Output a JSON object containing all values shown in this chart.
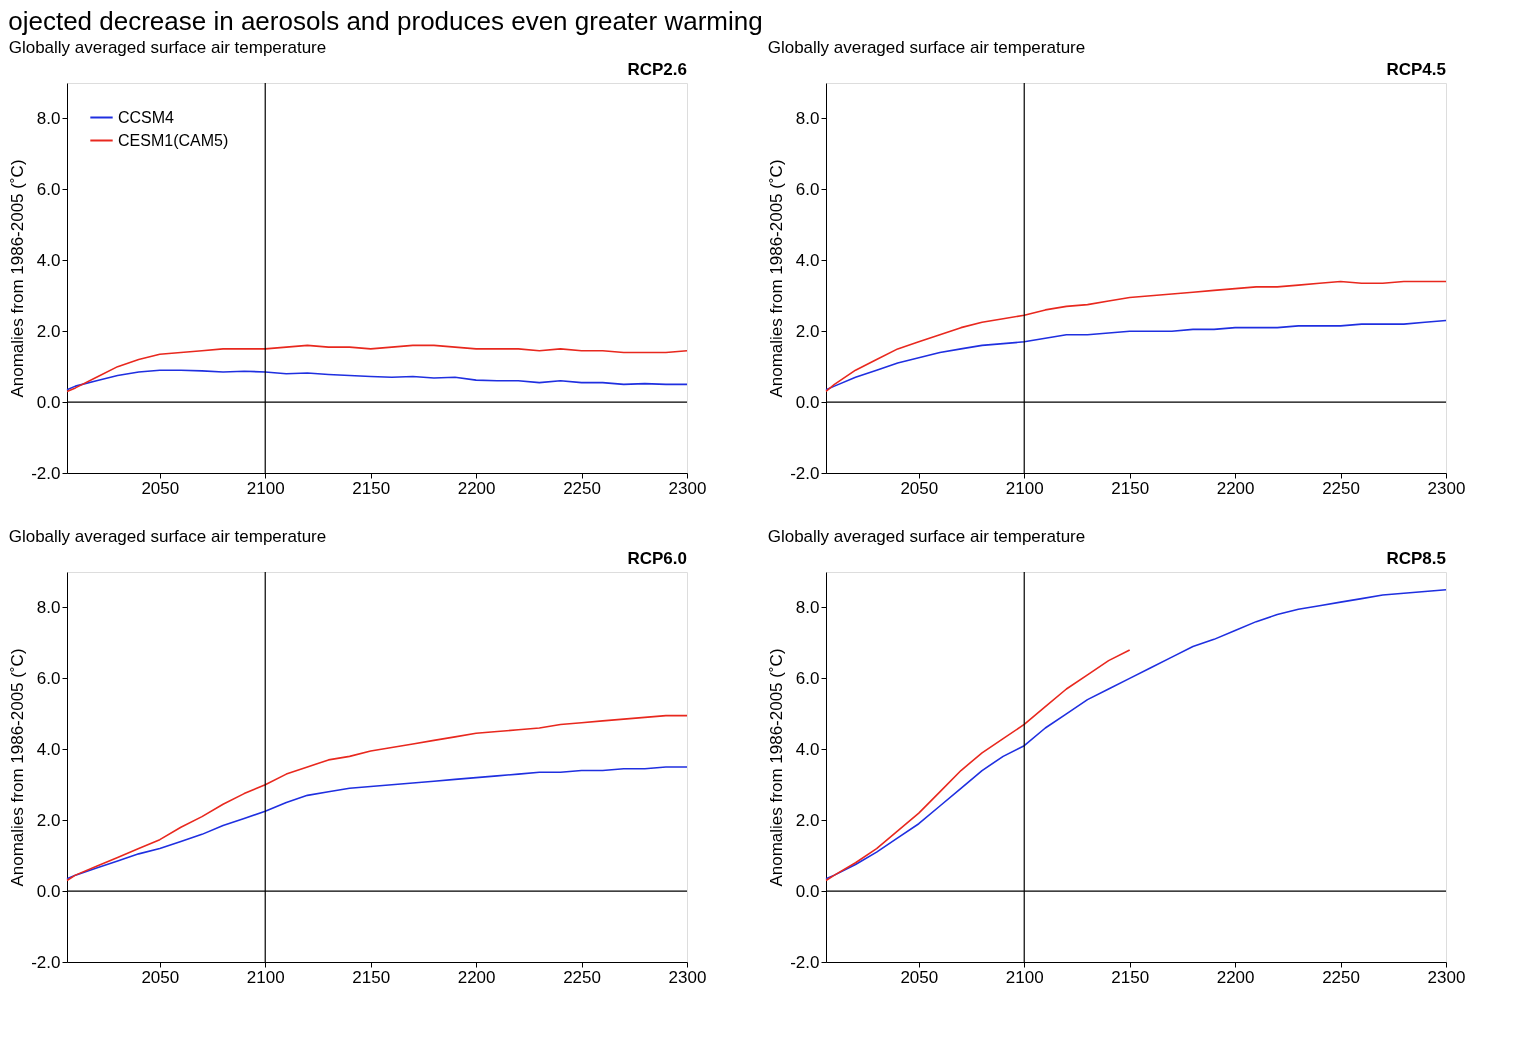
{
  "chart_data": [
    {
      "type": "line",
      "title": "Globally averaged surface air temperature",
      "subtitle": "RCP2.6",
      "ylabel": "Anomalies from 1986-2005 (˚C)",
      "annotations": [
        "ojected decrease in aerosols and produces even greater warming"
      ],
      "x": [
        2006,
        2010,
        2020,
        2030,
        2040,
        2050,
        2060,
        2070,
        2080,
        2090,
        2100,
        2110,
        2120,
        2130,
        2140,
        2150,
        2160,
        2170,
        2180,
        2190,
        2200,
        2210,
        2220,
        2230,
        2240,
        2250,
        2260,
        2270,
        2280,
        2290,
        2300
      ],
      "xlim": [
        2006,
        2300
      ],
      "xticks": [
        2050,
        2100,
        2150,
        2200,
        2250,
        2300
      ],
      "ylim": [
        -2,
        9
      ],
      "yticks": [
        {
          "value": -2,
          "label": "-2.0"
        },
        {
          "value": 0,
          "label": "0.0"
        },
        {
          "value": 2,
          "label": "2.0"
        },
        {
          "value": 4,
          "label": "4.0"
        },
        {
          "value": 6,
          "label": "6.0"
        },
        {
          "value": 8,
          "label": "8.0"
        }
      ],
      "grid": false,
      "legend": "top left",
      "ref_lines": [
        {
          "axis": "y",
          "value": 0,
          "color": "#000000"
        },
        {
          "axis": "x",
          "value": 2100,
          "color": "#000000"
        }
      ],
      "series": [
        {
          "name": "CCSM4",
          "color": "#1f2fe0",
          "values": [
            0.35,
            0.45,
            0.6,
            0.75,
            0.85,
            0.9,
            0.9,
            0.88,
            0.85,
            0.87,
            0.85,
            0.8,
            0.82,
            0.78,
            0.75,
            0.72,
            0.7,
            0.72,
            0.68,
            0.7,
            0.62,
            0.6,
            0.6,
            0.55,
            0.6,
            0.55,
            0.55,
            0.5,
            0.52,
            0.5,
            0.5
          ]
        },
        {
          "name": "CESM1(CAM5)",
          "color": "#e8281e",
          "values": [
            0.3,
            0.4,
            0.7,
            1.0,
            1.2,
            1.35,
            1.4,
            1.45,
            1.5,
            1.5,
            1.5,
            1.55,
            1.6,
            1.55,
            1.55,
            1.5,
            1.55,
            1.6,
            1.6,
            1.55,
            1.5,
            1.5,
            1.5,
            1.45,
            1.5,
            1.45,
            1.45,
            1.4,
            1.4,
            1.4,
            1.45
          ]
        }
      ]
    },
    {
      "type": "line",
      "title": "Globally averaged surface air temperature",
      "subtitle": "RCP4.5",
      "ylabel": "Anomalies from 1986-2005 (˚C)",
      "x": [
        2006,
        2010,
        2020,
        2030,
        2040,
        2050,
        2060,
        2070,
        2080,
        2090,
        2100,
        2110,
        2120,
        2130,
        2140,
        2150,
        2160,
        2170,
        2180,
        2190,
        2200,
        2210,
        2220,
        2230,
        2240,
        2250,
        2260,
        2270,
        2280,
        2290,
        2300
      ],
      "xlim": [
        2006,
        2300
      ],
      "xticks": [
        2050,
        2100,
        2150,
        2200,
        2250,
        2300
      ],
      "ylim": [
        -2,
        9
      ],
      "yticks": [
        {
          "value": -2,
          "label": "-2.0"
        },
        {
          "value": 0,
          "label": "0.0"
        },
        {
          "value": 2,
          "label": "2.0"
        },
        {
          "value": 4,
          "label": "4.0"
        },
        {
          "value": 6,
          "label": "6.0"
        },
        {
          "value": 8,
          "label": "8.0"
        }
      ],
      "grid": false,
      "legend": "top left",
      "ref_lines": [
        {
          "axis": "y",
          "value": 0,
          "color": "#000000"
        },
        {
          "axis": "x",
          "value": 2100,
          "color": "#000000"
        }
      ],
      "series": [
        {
          "name": "CCSM4",
          "color": "#1f2fe0",
          "values": [
            0.35,
            0.45,
            0.7,
            0.9,
            1.1,
            1.25,
            1.4,
            1.5,
            1.6,
            1.65,
            1.7,
            1.8,
            1.9,
            1.9,
            1.95,
            2.0,
            2.0,
            2.0,
            2.05,
            2.05,
            2.1,
            2.1,
            2.1,
            2.15,
            2.15,
            2.15,
            2.2,
            2.2,
            2.2,
            2.25,
            2.3
          ]
        },
        {
          "name": "CESM1(CAM5)",
          "color": "#e8281e",
          "values": [
            0.3,
            0.5,
            0.9,
            1.2,
            1.5,
            1.7,
            1.9,
            2.1,
            2.25,
            2.35,
            2.45,
            2.6,
            2.7,
            2.75,
            2.85,
            2.95,
            3.0,
            3.05,
            3.1,
            3.15,
            3.2,
            3.25,
            3.25,
            3.3,
            3.35,
            3.4,
            3.35,
            3.35,
            3.4,
            3.4,
            3.4
          ]
        }
      ]
    },
    {
      "type": "line",
      "title": "Globally averaged surface air temperature",
      "subtitle": "RCP6.0",
      "ylabel": "Anomalies from 1986-2005 (˚C)",
      "x": [
        2006,
        2010,
        2020,
        2030,
        2040,
        2050,
        2060,
        2070,
        2080,
        2090,
        2100,
        2110,
        2120,
        2130,
        2140,
        2150,
        2160,
        2170,
        2180,
        2190,
        2200,
        2210,
        2220,
        2230,
        2240,
        2250,
        2260,
        2270,
        2280,
        2290,
        2300
      ],
      "xlim": [
        2006,
        2300
      ],
      "xticks": [
        2050,
        2100,
        2150,
        2200,
        2250,
        2300
      ],
      "ylim": [
        -2,
        9
      ],
      "yticks": [
        {
          "value": -2,
          "label": "-2.0"
        },
        {
          "value": 0,
          "label": "0.0"
        },
        {
          "value": 2,
          "label": "2.0"
        },
        {
          "value": 4,
          "label": "4.0"
        },
        {
          "value": 6,
          "label": "6.0"
        },
        {
          "value": 8,
          "label": "8.0"
        }
      ],
      "grid": false,
      "legend": "top left",
      "ref_lines": [
        {
          "axis": "y",
          "value": 0,
          "color": "#000000"
        },
        {
          "axis": "x",
          "value": 2100,
          "color": "#000000"
        }
      ],
      "series": [
        {
          "name": "CCSM4",
          "color": "#1f2fe0",
          "values": [
            0.35,
            0.45,
            0.65,
            0.85,
            1.05,
            1.2,
            1.4,
            1.6,
            1.85,
            2.05,
            2.25,
            2.5,
            2.7,
            2.8,
            2.9,
            2.95,
            3.0,
            3.05,
            3.1,
            3.15,
            3.2,
            3.25,
            3.3,
            3.35,
            3.35,
            3.4,
            3.4,
            3.45,
            3.45,
            3.5,
            3.5
          ]
        },
        {
          "name": "CESM1(CAM5)",
          "color": "#e8281e",
          "values": [
            0.3,
            0.45,
            0.7,
            0.95,
            1.2,
            1.45,
            1.8,
            2.1,
            2.45,
            2.75,
            3.0,
            3.3,
            3.5,
            3.7,
            3.8,
            3.95,
            4.05,
            4.15,
            4.25,
            4.35,
            4.45,
            4.5,
            4.55,
            4.6,
            4.7,
            4.75,
            4.8,
            4.85,
            4.9,
            4.95,
            4.95
          ]
        }
      ]
    },
    {
      "type": "line",
      "title": "Globally averaged surface air temperature",
      "subtitle": "RCP8.5",
      "ylabel": "Anomalies from 1986-2005 (˚C)",
      "x": [
        2006,
        2010,
        2020,
        2030,
        2040,
        2050,
        2060,
        2070,
        2080,
        2090,
        2100,
        2110,
        2120,
        2130,
        2140,
        2150,
        2160,
        2170,
        2180,
        2190,
        2200,
        2210,
        2220,
        2230,
        2240,
        2250,
        2260,
        2270,
        2280,
        2290,
        2300
      ],
      "xlim": [
        2006,
        2300
      ],
      "xticks": [
        2050,
        2100,
        2150,
        2200,
        2250,
        2300
      ],
      "ylim": [
        -2,
        9
      ],
      "yticks": [
        {
          "value": -2,
          "label": "-2.0"
        },
        {
          "value": 0,
          "label": "0.0"
        },
        {
          "value": 2,
          "label": "2.0"
        },
        {
          "value": 4,
          "label": "4.0"
        },
        {
          "value": 6,
          "label": "6.0"
        },
        {
          "value": 8,
          "label": "8.0"
        }
      ],
      "grid": false,
      "legend": "top left",
      "ref_lines": [
        {
          "axis": "y",
          "value": 0,
          "color": "#000000"
        },
        {
          "axis": "x",
          "value": 2100,
          "color": "#000000"
        }
      ],
      "series": [
        {
          "name": "CCSM4",
          "color": "#1f2fe0",
          "values": [
            0.35,
            0.45,
            0.75,
            1.1,
            1.5,
            1.9,
            2.4,
            2.9,
            3.4,
            3.8,
            4.1,
            4.6,
            5.0,
            5.4,
            5.7,
            6.0,
            6.3,
            6.6,
            6.9,
            7.1,
            7.35,
            7.6,
            7.8,
            7.95,
            8.05,
            8.15,
            8.25,
            8.35,
            8.4,
            8.45,
            8.5
          ]
        },
        {
          "name": "CESM1(CAM5)",
          "color": "#e8281e",
          "x": [
            2006,
            2010,
            2020,
            2030,
            2040,
            2050,
            2060,
            2070,
            2080,
            2090,
            2100,
            2110,
            2120,
            2130,
            2140,
            2150
          ],
          "values": [
            0.3,
            0.45,
            0.8,
            1.2,
            1.7,
            2.2,
            2.8,
            3.4,
            3.9,
            4.3,
            4.7,
            5.2,
            5.7,
            6.1,
            6.5,
            6.8
          ]
        }
      ]
    }
  ]
}
